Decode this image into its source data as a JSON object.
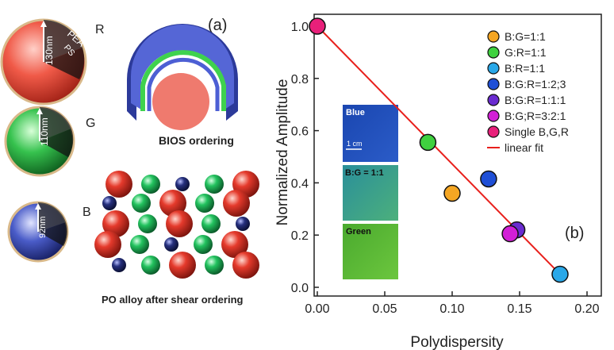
{
  "panel_a": {
    "label": "(a)",
    "spheres": [
      {
        "letter": "R",
        "size_label": "130nm",
        "shell_label": "PEA",
        "core_label": "PS",
        "color": "#e8453c"
      },
      {
        "letter": "G",
        "size_label": "110nm",
        "color": "#2fbf4f"
      },
      {
        "letter": "B",
        "size_label": "92nm",
        "color": "#3f4fb8"
      }
    ],
    "bios_caption": "BIOS ordering",
    "alloy_caption": "PO alloy after shear ordering",
    "colors": {
      "blue_shell": "#4d5fd4",
      "green_layer": "#3fd24e",
      "core": "#ef7a6e",
      "red_ball": "#e53a2c",
      "green_ball": "#22c25e",
      "navy_ball": "#26307e"
    }
  },
  "inset": {
    "tiles": [
      {
        "label": "Blue",
        "color": "#1f4fb5"
      },
      {
        "label": "B:G = 1:1",
        "color": "#2e9a92"
      },
      {
        "label": "Green",
        "color": "#52b836"
      }
    ],
    "scalebar_label": "1 cm"
  },
  "chart_data": {
    "type": "scatter",
    "panel_label": "(b)",
    "xlabel": "Polydispersity",
    "ylabel": "Normalized Amplitude",
    "xlim": [
      0,
      0.2
    ],
    "ylim": [
      0,
      1.0
    ],
    "xticks": [
      "0.00",
      "0.05",
      "0.10",
      "0.15",
      "0.20"
    ],
    "yticks": [
      "0.0",
      "0.2",
      "0.4",
      "0.6",
      "0.8",
      "1.0"
    ],
    "grid": false,
    "legend_position": "top-right",
    "series": [
      {
        "name": "B:G=1:1",
        "color": "#f5a623",
        "x": [
          0.1
        ],
        "y": [
          0.36
        ]
      },
      {
        "name": "G:R=1:1",
        "color": "#3fd13f",
        "x": [
          0.082
        ],
        "y": [
          0.555
        ]
      },
      {
        "name": "B:R=1:1",
        "color": "#2aa8e8",
        "x": [
          0.18
        ],
        "y": [
          0.05
        ]
      },
      {
        "name": "B:G:R=1:2;3",
        "color": "#1f4fd6",
        "x": [
          0.127
        ],
        "y": [
          0.415
        ]
      },
      {
        "name": "B:G:R=1:1:1",
        "color": "#6a2bd0",
        "x": [
          0.148
        ],
        "y": [
          0.22
        ]
      },
      {
        "name": "B:G;R=3:2:1",
        "color": "#d21fd6",
        "x": [
          0.143
        ],
        "y": [
          0.205
        ]
      },
      {
        "name": "Single B,G,R",
        "color": "#e8207a",
        "x": [
          0.0
        ],
        "y": [
          1.0
        ]
      }
    ],
    "fit": {
      "name": "linear fit",
      "color": "#e8201c",
      "x": [
        0.0,
        0.18
      ],
      "y": [
        1.0,
        0.05
      ]
    }
  }
}
